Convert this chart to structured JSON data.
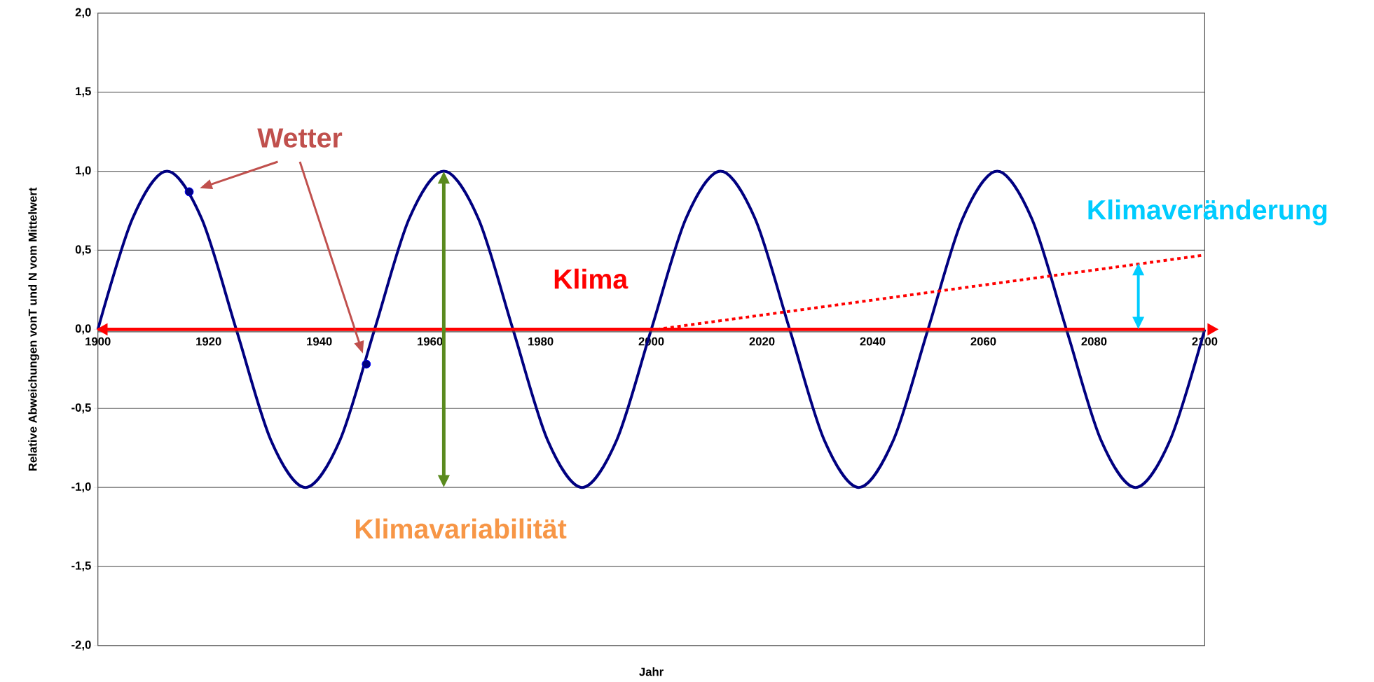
{
  "chart_data": {
    "type": "line",
    "xlabel": "Jahr",
    "ylabel": "Relative Abweichungen vonT und N vom Mittelwert",
    "xlim": [
      1900,
      2100
    ],
    "xticks": [
      1900,
      1920,
      1940,
      1960,
      1980,
      2000,
      2020,
      2040,
      2060,
      2080,
      2100
    ],
    "ylim": [
      -2,
      2
    ],
    "yticks": [
      {
        "value": -2,
        "label": "-2,0"
      },
      {
        "value": -1.5,
        "label": "-1,5"
      },
      {
        "value": -1,
        "label": "-1,0"
      },
      {
        "value": -0.5,
        "label": "-0,5"
      },
      {
        "value": 0,
        "label": "0,0"
      },
      {
        "value": 0.5,
        "label": "0,5"
      },
      {
        "value": 1,
        "label": "1,0"
      },
      {
        "value": 1.5,
        "label": "1,5"
      },
      {
        "value": 2,
        "label": "2,0"
      }
    ],
    "grid": "y",
    "series": [
      {
        "color": "#000080",
        "x": [
          1900,
          1906.25,
          1912.5,
          1918.75,
          1925,
          1931.25,
          1937.5,
          1943.75,
          1950,
          1956.25,
          1962.5,
          1968.75,
          1975,
          1981.25,
          1987.5,
          1993.75,
          2000,
          2006.25,
          2012.5,
          2018.75,
          2025,
          2031.25,
          2037.5,
          2043.75,
          2050,
          2056.25,
          2062.5,
          2068.75,
          2075,
          2081.25,
          2087.5,
          2093.75,
          2100
        ],
        "values": [
          0,
          0.7,
          1,
          0.7,
          0,
          -0.7,
          -1,
          -0.7,
          0,
          0.7,
          1,
          0.7,
          0,
          -0.7,
          -1,
          -0.7,
          0,
          0.7,
          1,
          0.7,
          0,
          -0.7,
          -1,
          -0.7,
          0,
          0.7,
          1,
          0.7,
          0,
          -0.7,
          -1,
          -0.7,
          0
        ]
      },
      {
        "type": "scatter",
        "color": "#000080",
        "x": [
          1916.5,
          1948.5
        ],
        "values": [
          0.87,
          -0.22
        ]
      },
      {
        "color": "#ff0000",
        "line_style": "dotted",
        "x": [
          2001,
          2100
        ],
        "values": [
          0,
          0.47
        ]
      }
    ],
    "ref_lines": [
      {
        "axis": "y",
        "value": 0,
        "label": "Klima",
        "color": "#ff0000"
      }
    ],
    "annotations": [
      {
        "text": "Wetter",
        "x": 1916.5,
        "y": 0.87
      },
      "Klimavariabilität",
      {
        "text": "Klimaveränderung",
        "x": 2088,
        "y": 0.42
      }
    ]
  }
}
